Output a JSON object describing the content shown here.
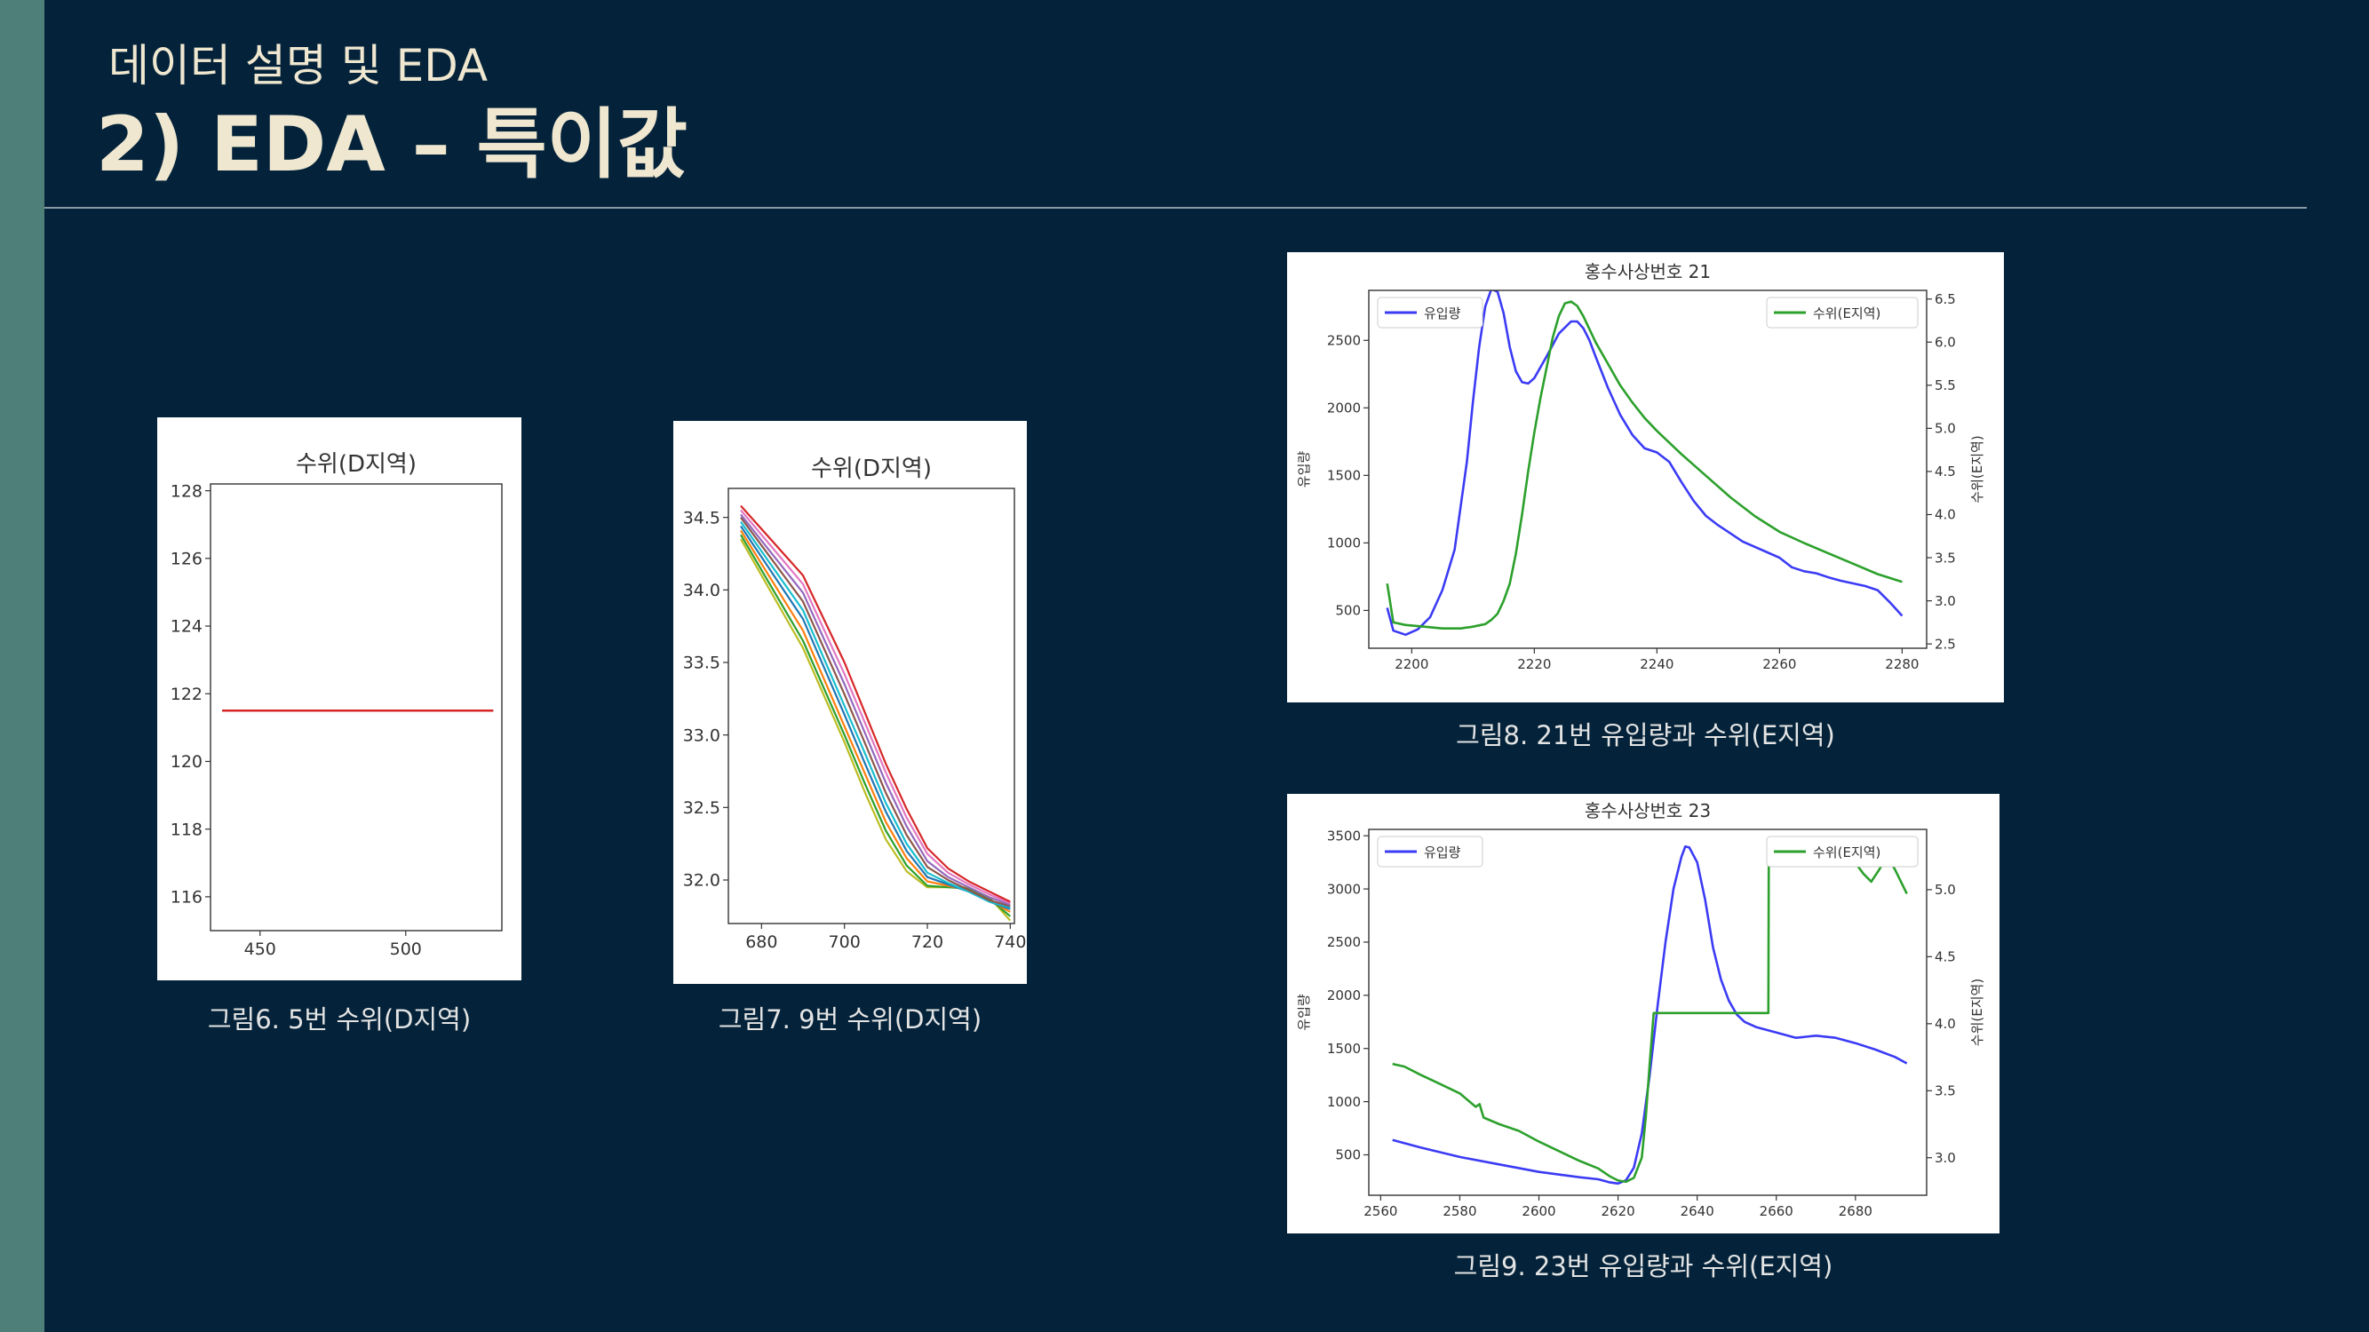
{
  "slide": {
    "subtitle": "데이터 설명 및 EDA",
    "title": "2) EDA – 특이값"
  },
  "figures": [
    {
      "caption": "그림6. 5번 수위(D지역)"
    },
    {
      "caption": "그림7. 9번 수위(D지역)"
    },
    {
      "caption": "그림8. 21번 유입량과 수위(E지역)"
    },
    {
      "caption": "그림9. 23번 유입량과 수위(E지역)"
    }
  ],
  "chart_data": [
    {
      "type": "line",
      "title": "수위(D지역)",
      "xlim": [
        433,
        533
      ],
      "ylim": [
        115,
        128.2
      ],
      "xticks": [
        450,
        500
      ],
      "yticks": [
        116,
        118,
        120,
        122,
        124,
        126,
        128
      ],
      "x": [
        437,
        530
      ],
      "series": [
        {
          "color": "#1f77b4",
          "values": [
            121.5,
            121.5
          ]
        },
        {
          "color": "#ff7f0e",
          "values": [
            121.5,
            121.5
          ]
        },
        {
          "color": "#2ca02c",
          "values": [
            121.5,
            121.5
          ]
        },
        {
          "color": "#9467bd",
          "values": [
            121.5,
            121.5
          ]
        },
        {
          "color": "#d62728",
          "values": [
            121.5,
            121.5
          ]
        }
      ]
    },
    {
      "type": "line",
      "title": "수위(D지역)",
      "xlim": [
        672,
        741
      ],
      "ylim": [
        31.7,
        34.7
      ],
      "xticks": [
        680,
        700,
        720,
        740
      ],
      "yticks": [
        32.0,
        32.5,
        33.0,
        33.5,
        34.0,
        34.5
      ],
      "x": [
        675,
        690,
        700,
        705,
        710,
        715,
        720,
        725,
        730,
        735,
        740
      ],
      "series": [
        {
          "color": "#bcbd22",
          "values": [
            34.35,
            33.6,
            32.95,
            32.6,
            32.28,
            32.06,
            31.95,
            31.95,
            31.95,
            31.88,
            31.72
          ]
        },
        {
          "color": "#2ca02c",
          "values": [
            34.38,
            33.65,
            33.0,
            32.66,
            32.34,
            32.1,
            31.96,
            31.95,
            31.94,
            31.87,
            31.75
          ]
        },
        {
          "color": "#ff7f0e",
          "values": [
            34.41,
            33.72,
            33.06,
            32.73,
            32.4,
            32.15,
            31.99,
            31.96,
            31.93,
            31.86,
            31.78
          ]
        },
        {
          "color": "#1f77b4",
          "values": [
            34.44,
            33.8,
            33.14,
            32.8,
            32.47,
            32.2,
            32.02,
            31.97,
            31.92,
            31.85,
            31.8
          ]
        },
        {
          "color": "#17becf",
          "values": [
            34.47,
            33.86,
            33.2,
            32.87,
            32.53,
            32.25,
            32.05,
            31.98,
            31.92,
            31.85,
            31.81
          ]
        },
        {
          "color": "#8c564b",
          "values": [
            34.5,
            33.92,
            33.28,
            32.94,
            32.6,
            32.31,
            32.09,
            32.0,
            31.93,
            31.86,
            31.82
          ]
        },
        {
          "color": "#9467bd",
          "values": [
            34.52,
            33.98,
            33.35,
            33.01,
            32.67,
            32.37,
            32.13,
            32.02,
            31.95,
            31.88,
            31.83
          ]
        },
        {
          "color": "#e377c2",
          "values": [
            34.55,
            34.04,
            33.42,
            33.08,
            32.74,
            32.43,
            32.18,
            32.05,
            31.97,
            31.9,
            31.84
          ]
        },
        {
          "color": "#d62728",
          "values": [
            34.58,
            34.1,
            33.5,
            33.15,
            32.8,
            32.49,
            32.22,
            32.08,
            31.99,
            31.92,
            31.85
          ]
        }
      ]
    },
    {
      "type": "line",
      "title": "홍수사상번호 21",
      "ylabel": "유입량",
      "y2label": "수위(E지역)",
      "xlim": [
        2193,
        2284
      ],
      "ylim": [
        220,
        2870
      ],
      "y2lim": [
        2.45,
        6.6
      ],
      "xticks": [
        2200,
        2220,
        2240,
        2260,
        2280
      ],
      "yticks": [
        500,
        1000,
        1500,
        2000,
        2500
      ],
      "y2ticks": [
        2.5,
        3.0,
        3.5,
        4.0,
        4.5,
        5.0,
        5.5,
        6.0,
        6.5
      ],
      "legend_left": "유입량",
      "legend_right": "수위(E지역)",
      "series": [
        {
          "name": "유입량",
          "axis": "left",
          "color": "#3b3bf5",
          "x": [
            2196,
            2197,
            2199,
            2201,
            2203,
            2205,
            2207,
            2209,
            2210,
            2211,
            2212,
            2213,
            2214,
            2215,
            2216,
            2217,
            2218,
            2219,
            2220,
            2222,
            2224,
            2226,
            2227,
            2228,
            2229,
            2230,
            2232,
            2234,
            2236,
            2238,
            2240,
            2242,
            2244,
            2246,
            2248,
            2250,
            2252,
            2254,
            2256,
            2258,
            2260,
            2262,
            2264,
            2266,
            2268,
            2270,
            2272,
            2274,
            2276,
            2278,
            2280
          ],
          "y": [
            520,
            350,
            320,
            360,
            450,
            650,
            950,
            1600,
            2050,
            2450,
            2750,
            2880,
            2860,
            2700,
            2450,
            2270,
            2190,
            2180,
            2220,
            2380,
            2550,
            2640,
            2640,
            2590,
            2500,
            2380,
            2150,
            1950,
            1800,
            1700,
            1670,
            1600,
            1450,
            1310,
            1200,
            1130,
            1070,
            1010,
            970,
            930,
            890,
            820,
            790,
            775,
            745,
            720,
            700,
            680,
            650,
            560,
            460
          ]
        },
        {
          "name": "수위(E지역)",
          "axis": "right",
          "color": "#2ca02c",
          "x": [
            2196,
            2197,
            2199,
            2202,
            2205,
            2208,
            2210,
            2212,
            2213,
            2214,
            2215,
            2216,
            2217,
            2218,
            2219,
            2220,
            2221,
            2222,
            2223,
            2224,
            2225,
            2226,
            2227,
            2228,
            2229,
            2230,
            2232,
            2234,
            2236,
            2238,
            2240,
            2244,
            2248,
            2252,
            2256,
            2260,
            2264,
            2268,
            2272,
            2276,
            2280
          ],
          "y": [
            3.2,
            2.75,
            2.72,
            2.7,
            2.68,
            2.68,
            2.7,
            2.73,
            2.78,
            2.85,
            3.0,
            3.2,
            3.55,
            4.0,
            4.5,
            4.95,
            5.35,
            5.7,
            6.05,
            6.3,
            6.45,
            6.47,
            6.42,
            6.3,
            6.15,
            6.0,
            5.75,
            5.5,
            5.3,
            5.12,
            4.97,
            4.7,
            4.45,
            4.2,
            3.98,
            3.8,
            3.67,
            3.55,
            3.43,
            3.31,
            3.22
          ]
        }
      ]
    },
    {
      "type": "line",
      "title": "홍수사상번호 23",
      "ylabel": "유입량",
      "y2label": "수위(E지역)",
      "xlim": [
        2557,
        2698
      ],
      "ylim": [
        120,
        3560
      ],
      "y2lim": [
        2.72,
        5.45
      ],
      "xticks": [
        2560,
        2580,
        2600,
        2620,
        2640,
        2660,
        2680
      ],
      "yticks": [
        500,
        1000,
        1500,
        2000,
        2500,
        3000,
        3500
      ],
      "y2ticks": [
        3.0,
        3.5,
        4.0,
        4.5,
        5.0
      ],
      "legend_left": "유입량",
      "legend_right": "수위(E지역)",
      "series": [
        {
          "name": "유입량",
          "axis": "left",
          "color": "#3b3bf5",
          "x": [
            2563,
            2570,
            2580,
            2590,
            2600,
            2610,
            2615,
            2618,
            2620,
            2622,
            2624,
            2626,
            2628,
            2630,
            2632,
            2634,
            2636,
            2637,
            2638,
            2640,
            2642,
            2644,
            2646,
            2648,
            2650,
            2652,
            2655,
            2660,
            2665,
            2670,
            2675,
            2680,
            2685,
            2690,
            2693
          ],
          "y": [
            640,
            570,
            480,
            410,
            340,
            290,
            270,
            240,
            230,
            260,
            380,
            700,
            1250,
            1900,
            2500,
            3000,
            3300,
            3400,
            3390,
            3250,
            2900,
            2450,
            2150,
            1950,
            1820,
            1750,
            1700,
            1650,
            1600,
            1620,
            1600,
            1550,
            1490,
            1420,
            1360
          ]
        },
        {
          "name": "수위(E지역)",
          "axis": "right",
          "color": "#2ca02c",
          "x": [
            2563,
            2566,
            2570,
            2575,
            2580,
            2584,
            2585,
            2586,
            2590,
            2595,
            2600,
            2605,
            2610,
            2615,
            2618,
            2620,
            2622,
            2624,
            2626,
            2627,
            2628,
            2629,
            2635,
            2640,
            2645,
            2650,
            2655,
            2658,
            2658.1,
            2660,
            2662,
            2664,
            2666,
            2668,
            2670,
            2672,
            2674,
            2676,
            2678,
            2680,
            2682,
            2684,
            2686,
            2688,
            2690,
            2693
          ],
          "y": [
            3.7,
            3.68,
            3.62,
            3.55,
            3.48,
            3.38,
            3.4,
            3.3,
            3.25,
            3.2,
            3.12,
            3.05,
            2.98,
            2.92,
            2.86,
            2.83,
            2.82,
            2.85,
            3.0,
            3.3,
            3.7,
            4.08,
            4.08,
            4.08,
            4.08,
            4.08,
            4.08,
            4.08,
            5.28,
            5.3,
            5.25,
            5.2,
            5.22,
            5.27,
            5.25,
            5.2,
            5.23,
            5.26,
            5.24,
            5.2,
            5.12,
            5.06,
            5.15,
            5.25,
            5.15,
            4.97
          ]
        }
      ]
    }
  ]
}
